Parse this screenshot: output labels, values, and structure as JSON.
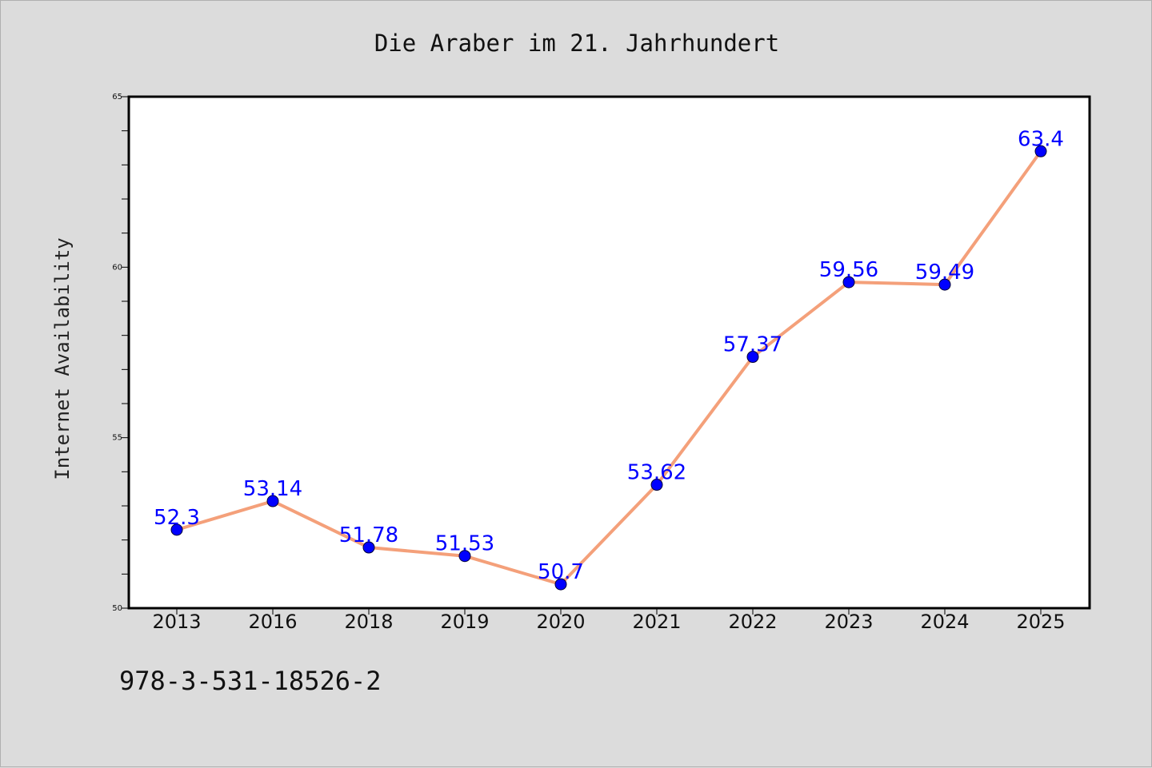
{
  "chart_data": {
    "type": "line",
    "title": "Die Araber im 21. Jahrhundert",
    "xlabel": "",
    "ylabel": "Internet Availability",
    "categories": [
      "2013",
      "2016",
      "2018",
      "2019",
      "2020",
      "2021",
      "2022",
      "2023",
      "2024",
      "2025"
    ],
    "series": [
      {
        "values": [
          52.3,
          53.14,
          51.78,
          51.53,
          50.7,
          53.62,
          57.37,
          59.56,
          59.49,
          63.4
        ],
        "data_labels": [
          "52.3",
          "53.14",
          "51.78",
          "51.53",
          "50.7",
          "53.62",
          "57.37",
          "59.56",
          "59.49",
          "63.4"
        ],
        "line_color": "#f4a07a",
        "marker_color": "#0000ff"
      }
    ],
    "ylim": [
      50,
      65
    ],
    "yticks": [
      50,
      55,
      60,
      65
    ],
    "ytick_labels": [
      "50",
      "55",
      "60",
      "65"
    ],
    "grid": false,
    "legend": "none",
    "background": "#dcdcdc",
    "plot_background": "#ffffff",
    "label_color": "#0000ff"
  },
  "footer": {
    "isbn": "978-3-531-18526-2"
  }
}
